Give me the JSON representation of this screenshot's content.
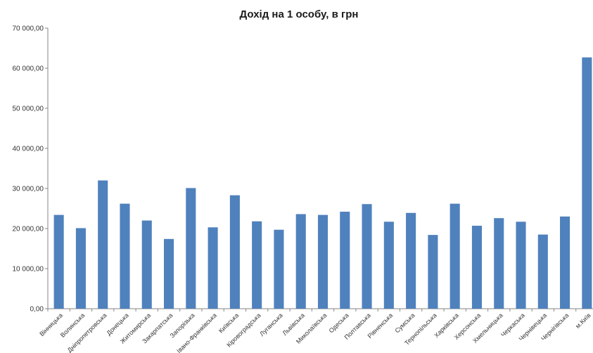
{
  "chart_data": {
    "type": "bar",
    "title": "Дохід на 1 особу, в грн",
    "xlabel": "",
    "ylabel": "",
    "ylim": [
      0,
      70000
    ],
    "ytick_values": [
      0,
      10000,
      20000,
      30000,
      40000,
      50000,
      60000,
      70000
    ],
    "ytick_labels": [
      "0,00",
      "10 000,00",
      "20 000,00",
      "30 000,00",
      "40 000,00",
      "50 000,00",
      "60 000,00",
      "70 000,00"
    ],
    "grid": false,
    "legend": "none",
    "bar_color": "#4f81bd",
    "categories": [
      "Вінницька",
      "Волинська",
      "Дніпропетровська",
      "Донецька",
      "Житомирська",
      "Закарпатська",
      "Запорізька",
      "Івано-Франківська",
      "Київська",
      "Кіровоградська",
      "Луганська",
      "Львівська",
      "Миколаївська",
      "Одеська",
      "Полтавська",
      "Рівненська",
      "Сумська",
      "Тернопільська",
      "Харківська",
      "Херсонська",
      "Хмельницька",
      "Черкаська",
      "Чернівецька",
      "Чернігівська",
      "м.Київ"
    ],
    "values": [
      23400,
      20100,
      32000,
      26200,
      22000,
      17400,
      30100,
      20300,
      28300,
      21800,
      19700,
      23600,
      23400,
      24200,
      26100,
      21700,
      23900,
      18400,
      26200,
      20700,
      22600,
      21700,
      18500,
      23000,
      62700
    ]
  }
}
